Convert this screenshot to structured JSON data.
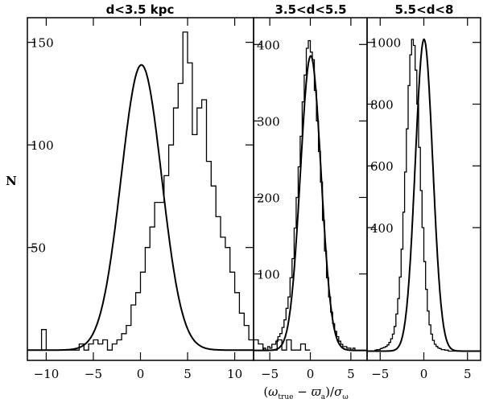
{
  "ylabel": "N",
  "xlabel": "(ω_true − ϖ_a)/σ_ω",
  "xlabel_parts": {
    "open": "(",
    "omega": "ω",
    "sub1": "true",
    "minus": " − ",
    "varpi": "ϖ",
    "sub2": "a",
    "close": ")/",
    "sigma": "σ",
    "sub3": "ω"
  },
  "chart_data": [
    {
      "type": "histogram",
      "title": "d<3.5 kpc",
      "xlim": [
        -12,
        12
      ],
      "ylim": [
        -5,
        162
      ],
      "xticks": [
        -10,
        -5,
        0,
        5,
        10
      ],
      "xtick_labels": [
        "−10",
        "−5",
        "0",
        "5",
        "10"
      ],
      "yticks": [
        50,
        100,
        150
      ],
      "ytick_labels": [
        "50",
        "100",
        "150"
      ],
      "bin_width": 0.5,
      "bin_start": -10.5,
      "counts": [
        10,
        0,
        0,
        0,
        0,
        0,
        0,
        0,
        3,
        0,
        3,
        5,
        3,
        5,
        0,
        3,
        5,
        8,
        12,
        22,
        28,
        38,
        50,
        60,
        72,
        72,
        85,
        100,
        118,
        130,
        155,
        140,
        105,
        118,
        122,
        92,
        80,
        65,
        55,
        50,
        38,
        28,
        18,
        12,
        5,
        5,
        3,
        0,
        0,
        0,
        5,
        0,
        5,
        0,
        0,
        3,
        0
      ],
      "fit": {
        "model": "gaussian",
        "amplitude": 139,
        "mean": 0.1,
        "sigma": 2.15
      },
      "grid": false
    },
    {
      "type": "histogram",
      "title": "3.5<d<5.5",
      "xlim": [
        -7,
        7
      ],
      "ylim": [
        -13,
        435
      ],
      "xticks": [
        -5,
        0,
        5
      ],
      "xtick_labels": [
        "−5",
        "0",
        "5"
      ],
      "yticks": [
        100,
        200,
        300,
        400
      ],
      "ytick_labels": [
        "100",
        "200",
        "300",
        "400"
      ],
      "bin_width": 0.25,
      "bin_start": -6,
      "counts": [
        0,
        3,
        0,
        5,
        3,
        8,
        8,
        12,
        18,
        22,
        30,
        40,
        55,
        70,
        95,
        120,
        160,
        200,
        240,
        280,
        325,
        360,
        395,
        405,
        390,
        380,
        340,
        300,
        260,
        220,
        170,
        130,
        95,
        70,
        50,
        35,
        25,
        18,
        12,
        8,
        5,
        5,
        3,
        3,
        0,
        3,
        0,
        0
      ],
      "fit": {
        "model": "gaussian",
        "amplitude": 385,
        "mean": 0.05,
        "sigma": 1.27
      },
      "grid": false
    },
    {
      "type": "histogram",
      "title": "5.5<d<8",
      "xlim": [
        -6.5,
        6.5
      ],
      "ylim": [
        -30,
        1080
      ],
      "xticks": [
        -5,
        0,
        5
      ],
      "xtick_labels": [
        "−5",
        "0",
        "5"
      ],
      "yticks": [
        400,
        600,
        800,
        1000
      ],
      "ytick_labels": [
        "400",
        "600",
        "800",
        "1000"
      ],
      "bin_width": 0.2,
      "bin_start": -6,
      "counts": [
        0,
        0,
        3,
        5,
        5,
        8,
        10,
        12,
        15,
        20,
        28,
        40,
        55,
        80,
        120,
        170,
        240,
        330,
        450,
        580,
        720,
        860,
        960,
        1010,
        990,
        910,
        800,
        660,
        520,
        400,
        290,
        200,
        130,
        85,
        55,
        35,
        22,
        15,
        10,
        8,
        5,
        5,
        3,
        3,
        0,
        0,
        0,
        0,
        0,
        0,
        0,
        0,
        0,
        0,
        0,
        0,
        0,
        0,
        0,
        0
      ],
      "fit": {
        "model": "gaussian",
        "amplitude": 1010,
        "mean": 0.02,
        "sigma": 1.0
      },
      "grid": false
    }
  ]
}
